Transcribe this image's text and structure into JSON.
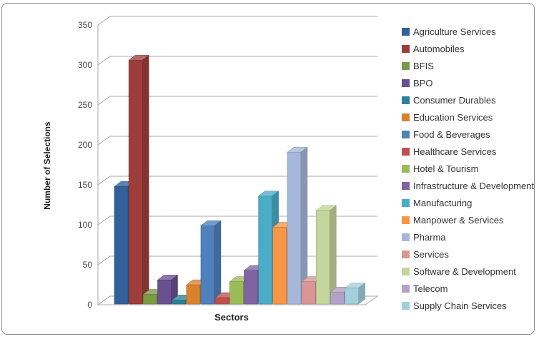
{
  "chart_data": {
    "type": "bar",
    "style": "3d-clustered-column",
    "title": "",
    "xlabel": "Sectors",
    "ylabel": "Number of Selections",
    "ylim": [
      0,
      350
    ],
    "ytick_step": 50,
    "yticks": [
      0,
      50,
      100,
      150,
      200,
      250,
      300,
      350
    ],
    "grid": true,
    "legend_position": "right",
    "series": [
      {
        "name": "Agriculture Services",
        "value": 147,
        "color": "#31609B"
      },
      {
        "name": "Automobiles",
        "value": 305,
        "color": "#9E3D39"
      },
      {
        "name": "BFIS",
        "value": 12,
        "color": "#7A9A46"
      },
      {
        "name": "BPO",
        "value": 30,
        "color": "#695190"
      },
      {
        "name": "Consumer Durables",
        "value": 5,
        "color": "#2C8199"
      },
      {
        "name": "Education Services",
        "value": 24,
        "color": "#D9822E"
      },
      {
        "name": "Food & Beverages",
        "value": 98,
        "color": "#4F81BD"
      },
      {
        "name": "Healthcare Services",
        "value": 8,
        "color": "#C0504D"
      },
      {
        "name": "Hotel & Tourism",
        "value": 28,
        "color": "#9BBB59"
      },
      {
        "name": "Infrastructure & Development",
        "value": 42,
        "color": "#8064A2"
      },
      {
        "name": "Manufacturing",
        "value": 135,
        "color": "#4BACC6"
      },
      {
        "name": "Manpower & Services",
        "value": 96,
        "color": "#F79646"
      },
      {
        "name": "Pharma",
        "value": 190,
        "color": "#A5B8DA"
      },
      {
        "name": "Services",
        "value": 28,
        "color": "#D99694"
      },
      {
        "name": "Software & Development",
        "value": 117,
        "color": "#C3D69B"
      },
      {
        "name": "Telecom",
        "value": 15,
        "color": "#B3A2C7"
      },
      {
        "name": "Supply Chain Services",
        "value": 20,
        "color": "#A3CEDD"
      }
    ],
    "colors": {
      "gridline": "#A8A8A8",
      "axis_text": "#3F3F3F",
      "frame_border": "#8E8E8E",
      "background": "#FFFFFF"
    }
  }
}
